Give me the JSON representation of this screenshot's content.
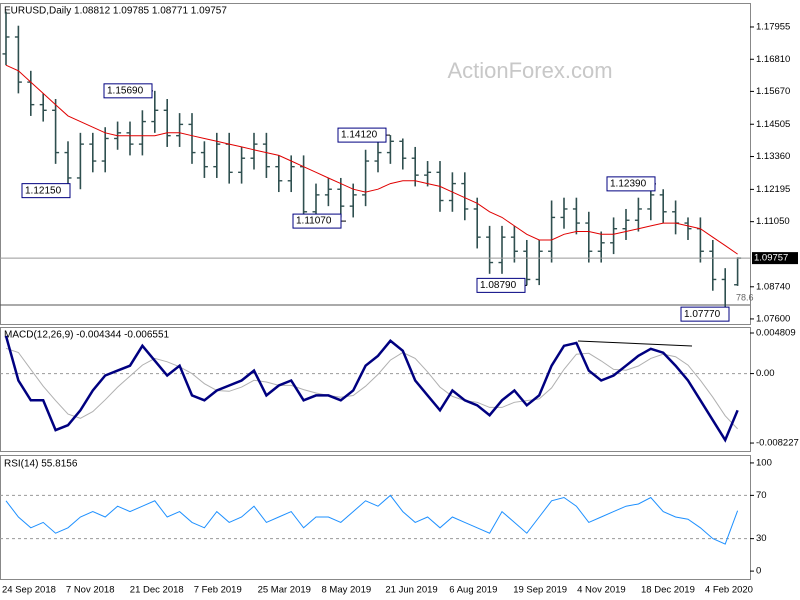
{
  "chart_data": [
    {
      "type": "ohlc",
      "title": "EURUSD,Daily  1.08812 1.09785 1.08771 1.09757",
      "watermark": "ActionForex.com",
      "color": "#2f4f4f",
      "ylim": [
        1.0742,
        1.1877
      ],
      "yticks": [
        1.17955,
        {
          "value": 1.1681,
          "label": "1.16810"
        },
        {
          "value": 1.1567,
          "label": "1.15670"
        },
        1.14505,
        {
          "value": 1.1336,
          "label": "1.13360"
        },
        1.12195,
        {
          "value": 1.1105,
          "label": "1.11050"
        },
        {
          "value": 1.0874,
          "label": "1.08740"
        },
        {
          "value": 1.076,
          "label": "1.07600"
        }
      ],
      "xlabels": [
        "24 Sep 2018",
        "7 Nov 2018",
        "21 Dec 2018",
        "7 Feb 2019",
        "25 Mar 2019",
        "8 May 2019",
        "21 Jun 2019",
        "6 Aug 2019",
        "19 Sep 2019",
        "4 Nov 2019",
        "18 Dec 2019",
        "4 Feb 2020"
      ],
      "open": [
        1.17,
        1.176,
        1.16,
        1.152,
        1.15,
        1.135,
        1.126,
        1.138,
        1.132,
        1.14,
        1.142,
        1.138,
        1.146,
        1.15,
        1.141,
        1.145,
        1.135,
        1.13,
        1.138,
        1.128,
        1.133,
        1.138,
        1.13,
        1.125,
        1.13,
        1.114,
        1.12,
        1.122,
        1.116,
        1.12,
        1.132,
        1.135,
        1.139,
        1.133,
        1.127,
        1.128,
        1.118,
        1.124,
        1.115,
        1.105,
        1.096,
        1.105,
        1.1,
        1.09,
        1.1,
        1.112,
        1.115,
        1.11,
        1.1,
        1.103,
        1.108,
        1.111,
        1.115,
        1.12,
        1.114,
        1.11,
        1.108,
        1.1,
        1.09,
        1.08812
      ],
      "high": [
        1.185,
        1.18,
        1.164,
        1.156,
        1.154,
        1.139,
        1.142,
        1.142,
        1.144,
        1.146,
        1.146,
        1.15,
        1.1569,
        1.154,
        1.149,
        1.149,
        1.139,
        1.142,
        1.142,
        1.137,
        1.142,
        1.142,
        1.134,
        1.134,
        1.134,
        1.124,
        1.126,
        1.126,
        1.124,
        1.136,
        1.139,
        1.1412,
        1.14,
        1.137,
        1.132,
        1.132,
        1.128,
        1.128,
        1.119,
        1.109,
        1.109,
        1.109,
        1.104,
        1.104,
        1.118,
        1.119,
        1.119,
        1.114,
        1.107,
        1.112,
        1.115,
        1.119,
        1.1239,
        1.122,
        1.118,
        1.112,
        1.112,
        1.104,
        1.094,
        1.09785
      ],
      "low": [
        1.166,
        1.156,
        1.148,
        1.146,
        1.131,
        1.1215,
        1.122,
        1.128,
        1.128,
        1.136,
        1.134,
        1.134,
        1.142,
        1.137,
        1.137,
        1.131,
        1.126,
        1.126,
        1.124,
        1.124,
        1.129,
        1.126,
        1.121,
        1.121,
        1.1107,
        1.112,
        1.116,
        1.112,
        1.112,
        1.116,
        1.128,
        1.131,
        1.129,
        1.123,
        1.123,
        1.114,
        1.114,
        1.111,
        1.101,
        1.092,
        1.092,
        1.096,
        1.0879,
        1.088,
        1.096,
        1.108,
        1.106,
        1.096,
        1.096,
        1.099,
        1.104,
        1.107,
        1.111,
        1.11,
        1.106,
        1.104,
        1.096,
        1.086,
        1.0777,
        1.08771
      ],
      "close": [
        1.176,
        1.16,
        1.152,
        1.15,
        1.135,
        1.126,
        1.138,
        1.132,
        1.14,
        1.142,
        1.138,
        1.146,
        1.15,
        1.141,
        1.145,
        1.135,
        1.13,
        1.138,
        1.128,
        1.133,
        1.138,
        1.13,
        1.125,
        1.13,
        1.114,
        1.12,
        1.122,
        1.116,
        1.12,
        1.132,
        1.135,
        1.139,
        1.133,
        1.127,
        1.128,
        1.118,
        1.124,
        1.115,
        1.105,
        1.096,
        1.105,
        1.1,
        1.09,
        1.1,
        1.112,
        1.115,
        1.11,
        1.1,
        1.103,
        1.108,
        1.111,
        1.115,
        1.12,
        1.114,
        1.11,
        1.108,
        1.1,
        1.09,
        1.08,
        1.09757
      ],
      "ma": {
        "color": "#e00000",
        "values": [
          1.166,
          1.164,
          1.16,
          1.156,
          1.152,
          1.148,
          1.146,
          1.144,
          1.142,
          1.141,
          1.141,
          1.141,
          1.141,
          1.142,
          1.142,
          1.141,
          1.14,
          1.139,
          1.138,
          1.137,
          1.136,
          1.135,
          1.134,
          1.132,
          1.13,
          1.128,
          1.126,
          1.124,
          1.122,
          1.121,
          1.122,
          1.124,
          1.125,
          1.125,
          1.124,
          1.123,
          1.121,
          1.119,
          1.117,
          1.114,
          1.112,
          1.109,
          1.106,
          1.104,
          1.104,
          1.106,
          1.107,
          1.107,
          1.106,
          1.106,
          1.107,
          1.108,
          1.109,
          1.11,
          1.11,
          1.109,
          1.108,
          1.105,
          1.102,
          1.099
        ]
      },
      "last": 1.09757,
      "annotations": [
        {
          "value": 1.1569,
          "label": "1.15690"
        },
        {
          "value": 1.1412,
          "label": "1.14120"
        },
        {
          "value": 1.1215,
          "label": "1.12150"
        },
        {
          "value": 1.1107,
          "label": "1.11070"
        },
        {
          "value": 1.1239,
          "label": "1.12390"
        },
        {
          "value": 1.0879,
          "label": "1.08790"
        },
        {
          "value": 1.0777,
          "label": "1.07770"
        }
      ],
      "fib_level": 78.6
    },
    {
      "type": "macd",
      "title": "MACD(12,26,9) -0.004344 -0.006551",
      "ylim": [
        -0.00917,
        0.0054
      ],
      "yticks": [
        0.004809,
        {
          "value": 0,
          "label": "0.00"
        },
        -0.008227
      ],
      "levels": [
        0
      ],
      "series": [
        {
          "color": "#000080",
          "values": [
            0.00446,
            -0.00082,
            -0.00317,
            -0.00317,
            -0.0067,
            -0.00611,
            -0.00435,
            -0.002,
            -0.00023,
            0.00035,
            0.00094,
            0.00329,
            0.00153,
            -0.00023,
            0.00094,
            -0.00258,
            -0.00317,
            -0.002,
            -0.00141,
            -0.00082,
            0.00035,
            -0.00258,
            -0.00141,
            -0.00082,
            -0.00317,
            -0.00258,
            -0.00258,
            -0.00317,
            -0.002,
            0.00094,
            0.00211,
            0.00388,
            0.0027,
            -0.00082,
            -0.00258,
            -0.00435,
            -0.002,
            -0.00317,
            -0.00376,
            -0.00493,
            -0.00317,
            -0.002,
            -0.00376,
            -0.00258,
            0.00094,
            0.00329,
            0.00364,
            0.00035,
            -0.00082,
            -0.00023,
            0.00094,
            0.00211,
            0.00294,
            0.00247,
            0.00094,
            -0.00082,
            -0.00317,
            -0.00552,
            -0.00787,
            -0.004344
          ]
        },
        {
          "color": "#b0b0b0",
          "values": [
            0.003,
            0.0025,
            0.0005,
            -0.0015,
            -0.0032,
            -0.0048,
            -0.0053,
            -0.0045,
            -0.0031,
            -0.0016,
            -0.0003,
            0.001,
            0.0018,
            0.0014,
            0.0008,
            0,
            -0.0012,
            -0.002,
            -0.0021,
            -0.0016,
            -0.0008,
            -0.001,
            -0.0014,
            -0.0014,
            -0.0019,
            -0.0023,
            -0.0026,
            -0.0028,
            -0.0026,
            -0.0015,
            -0.0001,
            0.0016,
            0.0025,
            0.0018,
            0.0002,
            -0.0016,
            -0.0027,
            -0.0032,
            -0.0034,
            -0.004,
            -0.004,
            -0.0034,
            -0.0032,
            -0.003,
            -0.0017,
            0.0005,
            0.0023,
            0.0024,
            0.0015,
            0.0005,
            0.0004,
            0.0009,
            0.0018,
            0.0023,
            0.002,
            0.001,
            -0.0008,
            -0.0028,
            -0.005,
            -0.006551
          ]
        }
      ]
    },
    {
      "type": "line",
      "title": "RSI(14) 55.8156",
      "ylim": [
        -7.3,
        106.4
      ],
      "yticks": [
        0,
        30,
        70,
        100
      ],
      "levels": [
        30,
        70
      ],
      "series": [
        {
          "color": "#1e90ff",
          "values": [
            65,
            50,
            40,
            45,
            35,
            40,
            50,
            55,
            50,
            60,
            55,
            60,
            65,
            50,
            55,
            45,
            40,
            55,
            45,
            50,
            60,
            45,
            50,
            55,
            40,
            50,
            50,
            45,
            55,
            65,
            60,
            70,
            55,
            45,
            50,
            40,
            50,
            45,
            40,
            35,
            55,
            45,
            35,
            50,
            65,
            68,
            60,
            45,
            50,
            55,
            60,
            62,
            68,
            55,
            50,
            48,
            40,
            30,
            25,
            55.8156
          ]
        }
      ]
    }
  ]
}
